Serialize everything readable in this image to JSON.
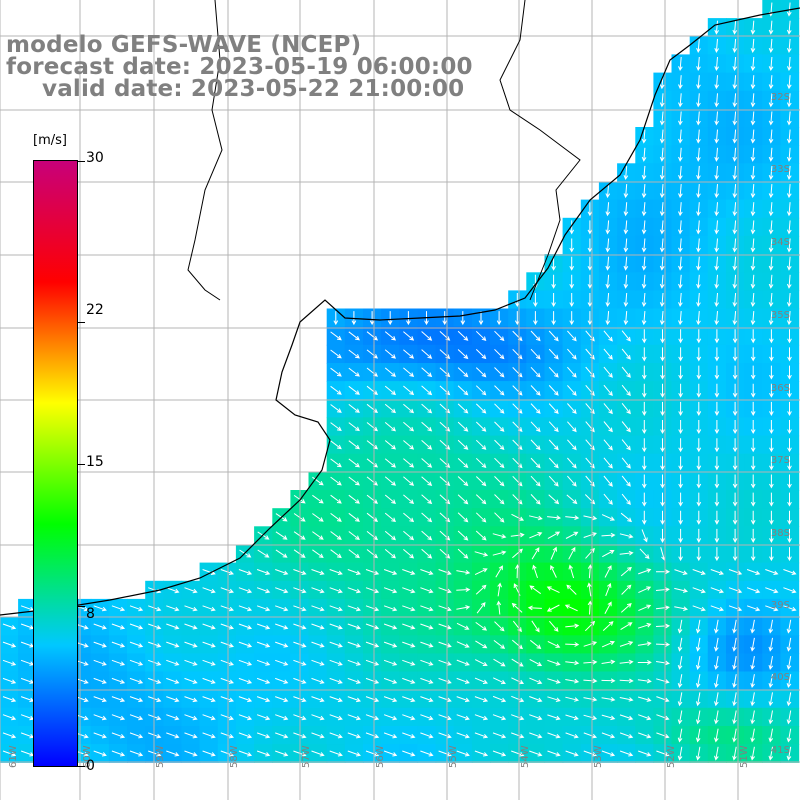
{
  "header": {
    "title": "modelo GEFS-WAVE (NCEP)",
    "forecast": "forecast date: 2023-05-19 06:00:00",
    "valid": "valid date: 2023-05-22 21:00:00"
  },
  "colorbar": {
    "units": "[m/s]",
    "ticks": [
      "30",
      "22",
      "15",
      "8",
      "0"
    ],
    "tick_values": [
      30,
      22,
      15,
      8,
      0
    ],
    "min": 0,
    "max": 30,
    "colors": [
      "#0000ff",
      "#00c8ff",
      "#00ff00",
      "#ffff00",
      "#ff0000",
      "#c8007a"
    ]
  },
  "grid": {
    "lat_labels": [
      "32S",
      "33S",
      "34S",
      "35S",
      "36S",
      "37S",
      "38S",
      "39S",
      "40S",
      "41S"
    ],
    "lon_labels": [
      "61W",
      "60W",
      "59W",
      "58W",
      "57W",
      "56W",
      "55W",
      "54W",
      "53W",
      "52W",
      "51W"
    ]
  },
  "style": {
    "land": "#ffffff",
    "coast": "#000000",
    "gridline": "#b4b4b4",
    "arrow": "#ffffff",
    "label": "#808080"
  }
}
